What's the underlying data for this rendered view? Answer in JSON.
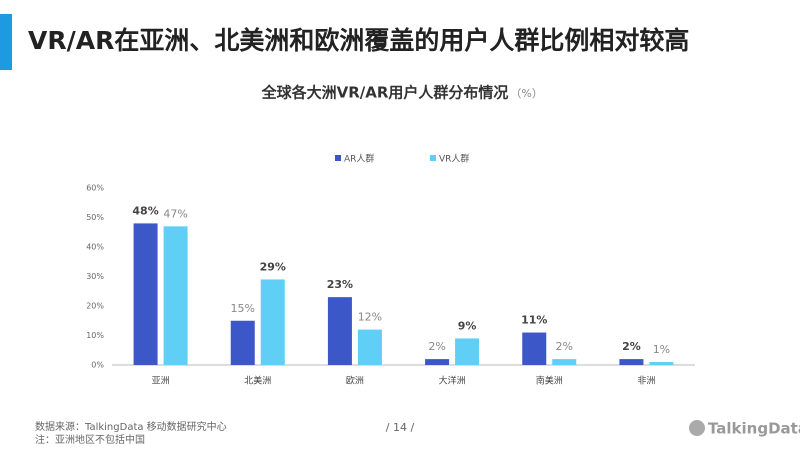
{
  "header": {
    "title": "VR/AR在亚洲、北美洲和欧洲覆盖的用户人群比例相对较高"
  },
  "chart_data": {
    "type": "bar",
    "title": "全球各大洲VR/AR用户人群分布情况",
    "subtitle": "（%）",
    "categories": [
      "亚洲",
      "北美洲",
      "欧洲",
      "大洋洲",
      "南美洲",
      "非洲"
    ],
    "series": [
      {
        "name": "AR人群",
        "color": "#3b57c8",
        "values": [
          48,
          15,
          23,
          2,
          11,
          2
        ],
        "value_labels": [
          "48%",
          "15%",
          "23%",
          "2%",
          "11%",
          "2%"
        ]
      },
      {
        "name": "VR人群",
        "color": "#5fcff5",
        "values": [
          47,
          29,
          12,
          9,
          2,
          1
        ],
        "value_labels": [
          "47%",
          "29%",
          "12%",
          "9%",
          "2%",
          "1%"
        ]
      }
    ],
    "ylim": [
      0,
      60
    ],
    "yticks": [
      {
        "value": 0,
        "label": "0%"
      },
      {
        "value": 10,
        "label": "10%"
      },
      {
        "value": 20,
        "label": "20%"
      },
      {
        "value": 30,
        "label": "30%"
      },
      {
        "value": 40,
        "label": "40%"
      },
      {
        "value": 50,
        "label": "50%"
      },
      {
        "value": 60,
        "label": "60%"
      }
    ],
    "grid": false,
    "legend": "top"
  },
  "footer": {
    "source": "数据来源：TalkingData 移动数据研究中心",
    "note": "注：亚洲地区不包括中国",
    "page": "/  14  /"
  },
  "logo": "TalkingData"
}
